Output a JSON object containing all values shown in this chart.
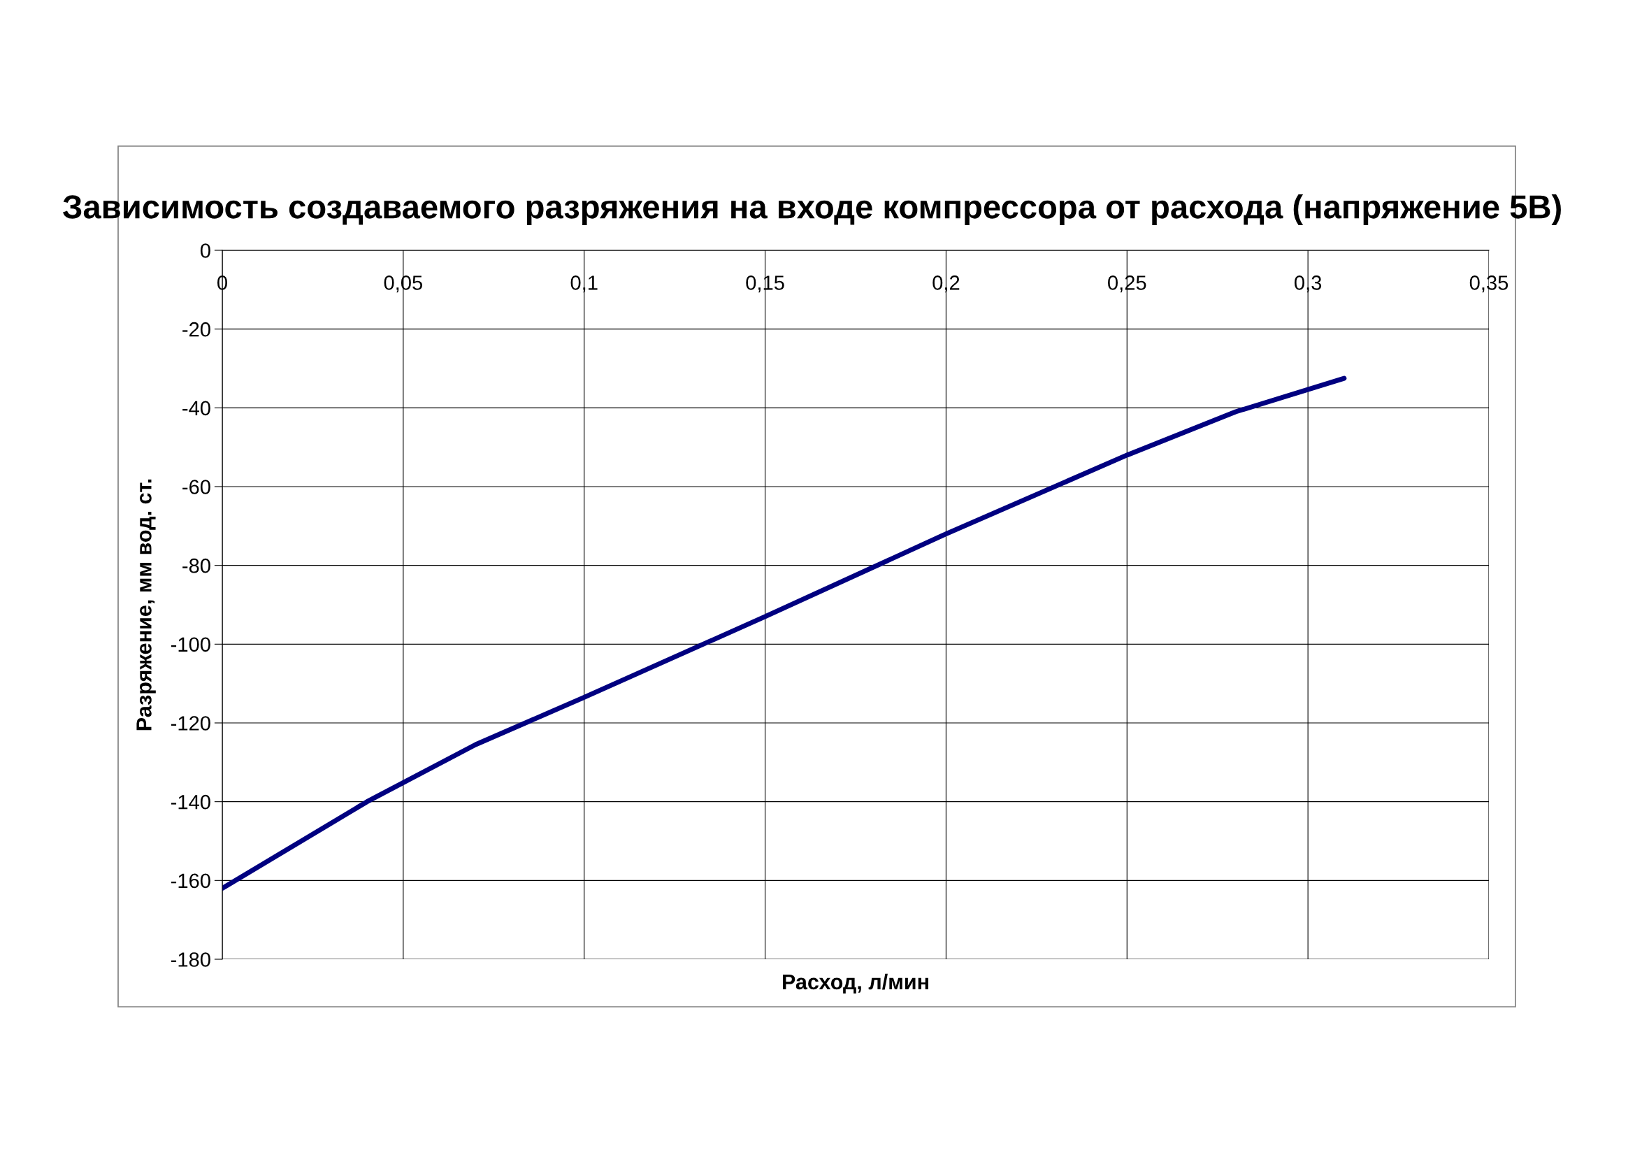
{
  "chart_data": {
    "type": "line",
    "title": "Зависимость создаваемого разряжения на входе компрессора от расхода (напряжение 5В)",
    "xlabel": "Расход, л/мин",
    "ylabel": "Разряжение, мм вод. ст.",
    "series": [
      {
        "color": "#000080",
        "x": [
          0,
          0.04,
          0.07,
          0.1,
          0.15,
          0.2,
          0.25,
          0.28,
          0.31
        ],
        "values": [
          -162,
          -140,
          -125.5,
          -113.5,
          -93,
          -72,
          -52,
          -41,
          -32.5
        ]
      }
    ],
    "xlim": [
      0,
      0.35
    ],
    "xticks": [
      0,
      {
        "value": 0.05,
        "label": "0,05"
      },
      {
        "value": 0.1,
        "label": "0,1"
      },
      {
        "value": 0.15,
        "label": "0,15"
      },
      {
        "value": 0.2,
        "label": "0,2"
      },
      {
        "value": 0.25,
        "label": "0,25"
      },
      {
        "value": 0.3,
        "label": "0,3"
      },
      {
        "value": 0.35,
        "label": "0,35"
      }
    ],
    "ylim": [
      -180,
      0
    ],
    "yticks": [
      0,
      -20,
      -40,
      -60,
      -80,
      -100,
      -120,
      -140,
      -160,
      -180
    ],
    "grid": true,
    "marker": "none",
    "line_style": "solid"
  }
}
